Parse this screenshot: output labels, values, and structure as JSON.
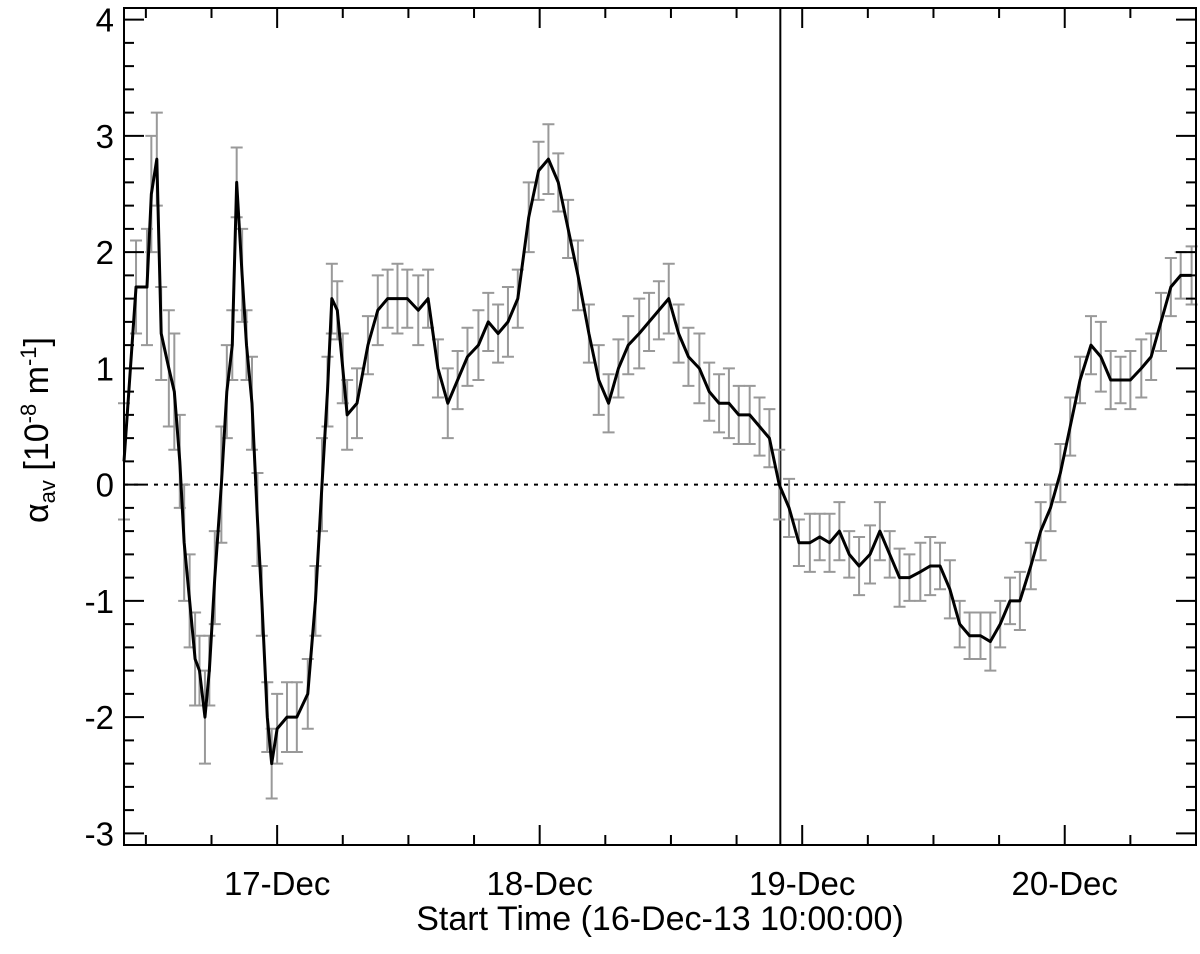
{
  "chart_data": {
    "type": "line",
    "xlabel": "Start Time (16-Dec-13 10:00:00)",
    "ylabel": {
      "symbol": "α",
      "sub": "av",
      "pre": " [10",
      "sup1": "-8",
      "mid": " m",
      "sup2": "-1",
      "post": "]"
    },
    "xlim": [
      0,
      98
    ],
    "ylim": [
      -3.1,
      4.1
    ],
    "xticks": [
      {
        "value": 14,
        "label": "17-Dec"
      },
      {
        "value": 38,
        "label": "18-Dec"
      },
      {
        "value": 62,
        "label": "19-Dec"
      },
      {
        "value": 86,
        "label": "20-Dec"
      }
    ],
    "xminorticks": [
      2,
      8,
      20,
      26,
      32,
      44,
      50,
      56,
      68,
      74,
      80,
      92
    ],
    "yticks": [
      -3,
      -2,
      -1,
      0,
      1,
      2,
      3,
      4
    ],
    "yminorticks": [
      -2.8,
      -2.6,
      -2.4,
      -2.2,
      -1.8,
      -1.6,
      -1.4,
      -1.2,
      -0.8,
      -0.6,
      -0.4,
      -0.2,
      0.2,
      0.4,
      0.6,
      0.8,
      1.2,
      1.4,
      1.6,
      1.8,
      2.2,
      2.4,
      2.6,
      2.8,
      3.2,
      3.4,
      3.6,
      3.8
    ],
    "hline_y": 0,
    "vline_x": 60,
    "x": [
      0,
      1.1,
      2.1,
      2.5,
      3.0,
      3.4,
      4.1,
      4.6,
      5.1,
      5.5,
      6.0,
      6.5,
      6.9,
      7.4,
      7.8,
      8.3,
      8.9,
      9.4,
      9.9,
      10.3,
      10.8,
      11.2,
      11.7,
      12.2,
      12.6,
      13.1,
      13.5,
      14.0,
      14.9,
      15.8,
      16.8,
      17.5,
      18.1,
      18.6,
      19.0,
      19.5,
      20.0,
      20.4,
      21.3,
      22.3,
      23.2,
      24.1,
      25.0,
      25.9,
      26.9,
      27.8,
      28.7,
      29.6,
      30.5,
      31.4,
      32.4,
      33.3,
      34.2,
      35.1,
      36.0,
      37.0,
      37.9,
      38.8,
      39.7,
      40.6,
      41.5,
      42.5,
      43.4,
      44.3,
      45.2,
      46.1,
      47.1,
      48.0,
      48.9,
      49.8,
      50.7,
      51.6,
      52.6,
      53.5,
      54.4,
      55.3,
      56.2,
      57.2,
      58.1,
      59.0,
      59.9,
      60.8,
      61.7,
      62.7,
      63.6,
      64.5,
      65.4,
      66.3,
      67.2,
      68.2,
      69.1,
      70.0,
      70.9,
      71.8,
      72.8,
      73.7,
      74.6,
      75.5,
      76.4,
      77.3,
      78.3,
      79.2,
      80.1,
      81.0,
      81.9,
      82.9,
      83.8,
      84.7,
      85.6,
      86.5,
      87.4,
      88.4,
      89.3,
      90.2,
      91.1,
      92.0,
      93.0,
      93.9,
      94.8,
      95.7,
      96.6,
      97.6
    ],
    "series": [
      {
        "color": "#000000",
        "error_color": "#999999",
        "values": [
          0.2,
          1.7,
          1.7,
          2.5,
          2.8,
          1.3,
          1.0,
          0.8,
          0.2,
          -0.5,
          -1.0,
          -1.5,
          -1.6,
          -2.0,
          -1.6,
          -0.8,
          0.0,
          0.8,
          1.2,
          2.6,
          1.8,
          1.2,
          0.7,
          -0.3,
          -1.0,
          -2.0,
          -2.4,
          -2.1,
          -2.0,
          -2.0,
          -1.8,
          -1.0,
          0.0,
          0.8,
          1.6,
          1.5,
          1.0,
          0.6,
          0.7,
          1.2,
          1.5,
          1.6,
          1.6,
          1.6,
          1.5,
          1.6,
          1.0,
          0.7,
          0.9,
          1.1,
          1.2,
          1.4,
          1.3,
          1.4,
          1.6,
          2.3,
          2.7,
          2.8,
          2.6,
          2.2,
          1.8,
          1.3,
          0.9,
          0.7,
          1.0,
          1.2,
          1.3,
          1.4,
          1.5,
          1.6,
          1.3,
          1.1,
          1.0,
          0.8,
          0.7,
          0.7,
          0.6,
          0.6,
          0.5,
          0.4,
          0.0,
          -0.2,
          -0.5,
          -0.5,
          -0.45,
          -0.5,
          -0.4,
          -0.6,
          -0.7,
          -0.6,
          -0.4,
          -0.6,
          -0.8,
          -0.8,
          -0.75,
          -0.7,
          -0.7,
          -0.9,
          -1.2,
          -1.3,
          -1.3,
          -1.35,
          -1.2,
          -1.0,
          -1.0,
          -0.7,
          -0.4,
          -0.2,
          0.1,
          0.5,
          0.9,
          1.2,
          1.1,
          0.9,
          0.9,
          0.9,
          1.0,
          1.1,
          1.4,
          1.7,
          1.8,
          1.8
        ],
        "errors": [
          0.5,
          0.4,
          0.5,
          0.5,
          0.4,
          0.4,
          0.5,
          0.5,
          0.4,
          0.5,
          0.4,
          0.4,
          0.3,
          0.4,
          0.3,
          0.4,
          0.5,
          0.4,
          0.3,
          0.3,
          0.4,
          0.3,
          0.4,
          0.4,
          0.3,
          0.3,
          0.3,
          0.3,
          0.3,
          0.3,
          0.3,
          0.3,
          0.4,
          0.3,
          0.3,
          0.25,
          0.3,
          0.3,
          0.3,
          0.25,
          0.3,
          0.25,
          0.3,
          0.25,
          0.3,
          0.25,
          0.25,
          0.3,
          0.25,
          0.25,
          0.3,
          0.25,
          0.25,
          0.3,
          0.25,
          0.3,
          0.25,
          0.3,
          0.25,
          0.25,
          0.3,
          0.25,
          0.3,
          0.25,
          0.25,
          0.25,
          0.3,
          0.25,
          0.25,
          0.3,
          0.25,
          0.25,
          0.3,
          0.25,
          0.25,
          0.3,
          0.25,
          0.25,
          0.25,
          0.25,
          0.3,
          0.25,
          0.2,
          0.25,
          0.2,
          0.25,
          0.25,
          0.2,
          0.25,
          0.25,
          0.25,
          0.2,
          0.25,
          0.2,
          0.25,
          0.25,
          0.2,
          0.25,
          0.2,
          0.2,
          0.2,
          0.25,
          0.2,
          0.2,
          0.25,
          0.2,
          0.25,
          0.2,
          0.25,
          0.25,
          0.2,
          0.25,
          0.3,
          0.25,
          0.2,
          0.25,
          0.25,
          0.2,
          0.25,
          0.25,
          0.2,
          0.25
        ]
      }
    ]
  }
}
